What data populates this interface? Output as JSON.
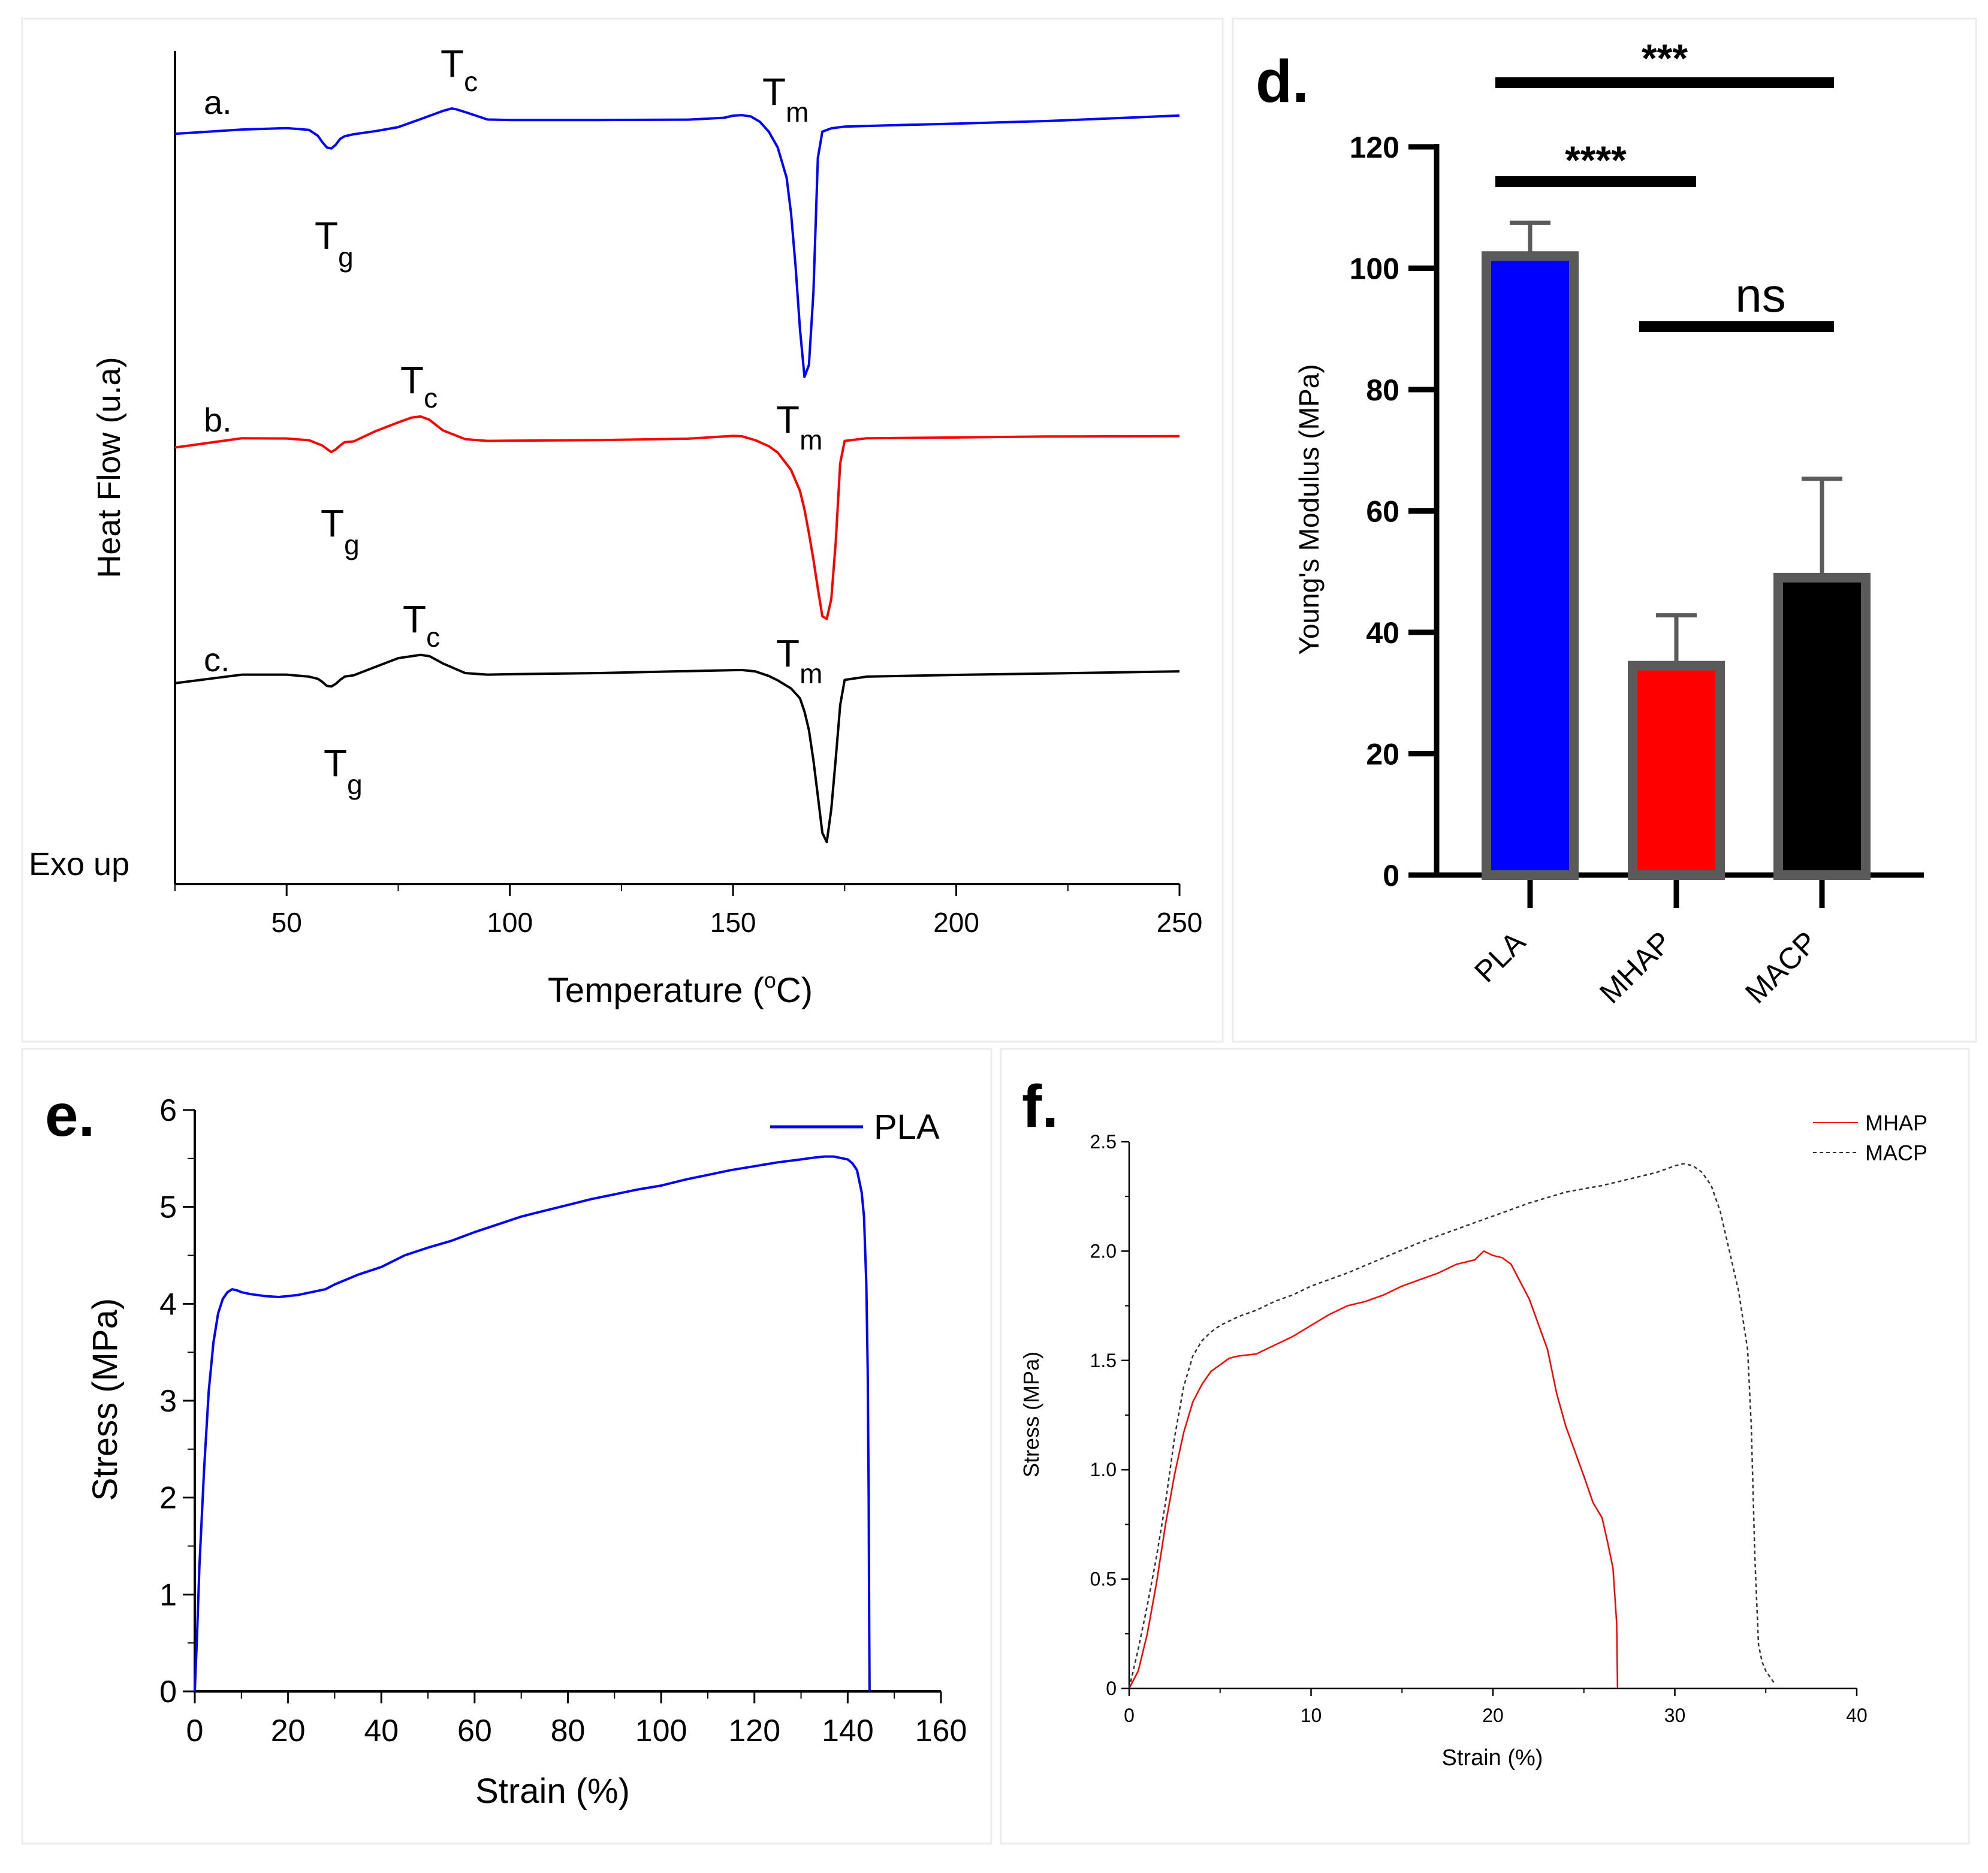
{
  "panel_dsc": {
    "xlabel": "Temperature (",
    "xlabel_deg": "o",
    "xlabel_end": "C)",
    "ylabel": "Heat Flow (u.a)",
    "exo": "Exo up",
    "curve_labels": [
      "a.",
      "b.",
      "c."
    ],
    "T": "T",
    "sub_g": "g",
    "sub_c": "c",
    "sub_m": "m"
  },
  "panel_d": {
    "letter": "d.",
    "sig": [
      "***",
      "****",
      "ns"
    ]
  },
  "panel_e": {
    "letter": "e."
  },
  "panel_f": {
    "letter": "f."
  },
  "chart_data": [
    {
      "id": "dsc",
      "type": "line",
      "title": "",
      "xlabel": "Temperature (°C)",
      "ylabel": "Heat Flow (u.a)",
      "xlim": [
        25,
        250
      ],
      "x_ticks": [
        50,
        100,
        150,
        200,
        250
      ],
      "y_ticks": [],
      "series": [
        {
          "name": "a.",
          "color": "#0000ff",
          "x": [
            25,
            40,
            50,
            55,
            57,
            58,
            59,
            60,
            61,
            62,
            63,
            65,
            70,
            75,
            80,
            85,
            87,
            88,
            90,
            95,
            100,
            120,
            140,
            148,
            150,
            152,
            154,
            156,
            158,
            160,
            162,
            163,
            164,
            165,
            166,
            167,
            168,
            169,
            170,
            172,
            175,
            180,
            200,
            220,
            250
          ],
          "y": [
            0.3,
            3.6,
            4.7,
            3.3,
            -1.2,
            -6,
            -10,
            -10.8,
            -8,
            -3.5,
            -1.5,
            0,
            2.4,
            5.4,
            11.5,
            17.7,
            19.6,
            18.9,
            16.8,
            11.2,
            10.8,
            10.8,
            11.1,
            12.5,
            14.1,
            14.5,
            13.5,
            9.5,
            2,
            -10,
            -33,
            -60,
            -100,
            -148,
            -184,
            -175,
            -120,
            -18,
            2,
            4.5,
            5.8,
            6.3,
            8.1,
            10,
            14.2
          ]
        },
        {
          "name": "b.",
          "color": "#ff0000",
          "x": [
            25,
            40,
            50,
            55,
            58,
            60,
            61,
            62,
            63,
            65,
            70,
            75,
            78,
            80,
            82,
            85,
            90,
            95,
            100,
            120,
            140,
            150,
            152,
            155,
            158,
            160,
            163,
            165,
            166,
            167,
            168,
            169,
            170,
            171,
            172,
            173,
            174,
            175,
            180,
            200,
            220,
            250
          ],
          "y": [
            -3,
            4,
            3.8,
            2.5,
            -1.5,
            -6.5,
            -4.5,
            -1.5,
            1,
            1.6,
            9.5,
            16,
            19.7,
            20.5,
            18,
            10,
            3.3,
            2,
            2.2,
            2.6,
            3.7,
            5.8,
            5.5,
            2.5,
            -2,
            -6.8,
            -20,
            -36,
            -50,
            -68,
            -88,
            -110,
            -131,
            -133,
            -118,
            -75,
            -15,
            2,
            4,
            4.6,
            5.3,
            5.6
          ]
        },
        {
          "name": "c.",
          "color": "#000000",
          "x": [
            25,
            40,
            50,
            55,
            57,
            58,
            59,
            60,
            61,
            62,
            63,
            65,
            70,
            75,
            80,
            82,
            85,
            90,
            95,
            100,
            120,
            140,
            150,
            152,
            155,
            158,
            160,
            163,
            165,
            166,
            167,
            168,
            169,
            170,
            171,
            172,
            173,
            174,
            175,
            180,
            200,
            220,
            250
          ],
          "y": [
            -4.5,
            2,
            2,
            0.5,
            -1.2,
            -3.5,
            -6.5,
            -7,
            -5,
            -2,
            0.5,
            1.5,
            8,
            14.5,
            17,
            16,
            10.5,
            3.2,
            2,
            2.3,
            3.2,
            4.7,
            5.4,
            5.5,
            4.4,
            1,
            -2.3,
            -8.5,
            -16,
            -26,
            -40,
            -63,
            -90,
            -118,
            -125,
            -100,
            -62,
            -21,
            -2,
            0.5,
            1.8,
            2.8,
            4.5
          ]
        }
      ]
    },
    {
      "id": "youngs_modulus",
      "type": "bar",
      "title": "",
      "xlabel": "",
      "ylabel": "Young's Modulus (MPa)",
      "ylim": [
        0,
        120
      ],
      "y_ticks": [
        0,
        20,
        40,
        60,
        80,
        100,
        120
      ],
      "categories": [
        "PLA",
        "MHAP",
        "MACP"
      ],
      "values": [
        102,
        34.5,
        49
      ],
      "errors": [
        5.5,
        8.3,
        16.3
      ],
      "colors": [
        "#0000ff",
        "#ff0000",
        "#000000"
      ],
      "significance": [
        {
          "from": "PLA",
          "to": "MACP",
          "label": "***"
        },
        {
          "from": "PLA",
          "to": "MHAP",
          "label": "****"
        },
        {
          "from": "MHAP",
          "to": "MACP",
          "label": "ns"
        }
      ]
    },
    {
      "id": "stress_strain_pla",
      "type": "line",
      "title": "",
      "xlabel": "Strain (%)",
      "ylabel": "Stress (MPa)",
      "xlim": [
        0,
        160
      ],
      "ylim": [
        0,
        6
      ],
      "x_ticks": [
        0,
        20,
        40,
        60,
        80,
        100,
        120,
        140,
        160
      ],
      "y_ticks": [
        0,
        1,
        2,
        3,
        4,
        5,
        6
      ],
      "legend": "top-right",
      "series": [
        {
          "name": "PLA",
          "color": "#0000ff",
          "x": [
            0,
            0.5,
            1,
            2,
            3,
            4,
            5,
            6,
            7,
            8,
            9,
            10,
            12,
            15,
            18,
            20,
            22,
            25,
            28,
            30,
            35,
            40,
            45,
            50,
            55,
            60,
            65,
            70,
            75,
            80,
            85,
            90,
            95,
            100,
            105,
            110,
            115,
            120,
            125,
            130,
            133,
            135,
            137,
            138,
            139,
            140,
            141,
            142,
            143,
            143.5,
            144,
            144.3,
            144.5,
            144.6,
            144.7
          ],
          "y": [
            0,
            0.6,
            1.3,
            2.3,
            3.1,
            3.6,
            3.9,
            4.05,
            4.12,
            4.15,
            4.14,
            4.12,
            4.1,
            4.08,
            4.07,
            4.08,
            4.09,
            4.12,
            4.15,
            4.2,
            4.3,
            4.38,
            4.5,
            4.58,
            4.65,
            4.74,
            4.82,
            4.9,
            4.96,
            5.02,
            5.08,
            5.13,
            5.18,
            5.22,
            5.28,
            5.33,
            5.38,
            5.42,
            5.46,
            5.49,
            5.51,
            5.52,
            5.52,
            5.51,
            5.5,
            5.49,
            5.45,
            5.38,
            5.15,
            4.9,
            4.2,
            3.3,
            2.0,
            0.8,
            0
          ]
        }
      ]
    },
    {
      "id": "stress_strain_composites",
      "type": "line",
      "title": "",
      "xlabel": "Strain (%)",
      "ylabel": "Stress (MPa)",
      "xlim": [
        0,
        40
      ],
      "ylim": [
        0,
        2.5
      ],
      "x_ticks": [
        0,
        10,
        20,
        30,
        40
      ],
      "y_ticks": [
        0,
        0.5,
        1.0,
        1.5,
        2.0,
        2.5
      ],
      "legend": "top-right",
      "series": [
        {
          "name": "MHAP",
          "color": "#ff0000",
          "dash": "solid",
          "x": [
            0,
            0.5,
            1,
            1.5,
            2,
            2.5,
            3,
            3.5,
            4,
            4.5,
            5,
            5.5,
            6,
            7,
            8,
            9,
            10,
            11,
            12,
            13,
            14,
            15,
            16,
            17,
            18,
            19,
            19.5,
            20,
            20.5,
            21,
            22,
            23,
            23.5,
            24,
            25,
            25.5,
            26,
            26.3,
            26.6,
            26.8,
            26.85
          ],
          "y": [
            0,
            0.08,
            0.25,
            0.48,
            0.75,
            0.98,
            1.17,
            1.31,
            1.39,
            1.45,
            1.48,
            1.51,
            1.52,
            1.53,
            1.57,
            1.61,
            1.66,
            1.71,
            1.75,
            1.77,
            1.8,
            1.84,
            1.87,
            1.9,
            1.94,
            1.96,
            2.0,
            1.98,
            1.97,
            1.94,
            1.78,
            1.55,
            1.35,
            1.2,
            0.97,
            0.85,
            0.78,
            0.67,
            0.55,
            0.3,
            0
          ]
        },
        {
          "name": "MACP",
          "color": "#333333",
          "dash": "dashed",
          "x": [
            0,
            0.5,
            1,
            1.5,
            2,
            2.5,
            3,
            3.5,
            4,
            4.5,
            5,
            6,
            7,
            8,
            9,
            10,
            12,
            14,
            16,
            18,
            20,
            22,
            24,
            26,
            28,
            29,
            30,
            30.5,
            31,
            31.5,
            32,
            32.5,
            33,
            33.5,
            34,
            34.2,
            34.4,
            34.6,
            34.8,
            35,
            35.5
          ],
          "y": [
            0,
            0.18,
            0.38,
            0.6,
            0.85,
            1.15,
            1.38,
            1.52,
            1.59,
            1.63,
            1.66,
            1.7,
            1.73,
            1.77,
            1.8,
            1.84,
            1.9,
            1.97,
            2.04,
            2.1,
            2.16,
            2.22,
            2.27,
            2.3,
            2.34,
            2.36,
            2.39,
            2.4,
            2.39,
            2.36,
            2.3,
            2.18,
            2.0,
            1.82,
            1.55,
            1.2,
            0.6,
            0.2,
            0.12,
            0.08,
            0.02
          ]
        }
      ]
    }
  ]
}
